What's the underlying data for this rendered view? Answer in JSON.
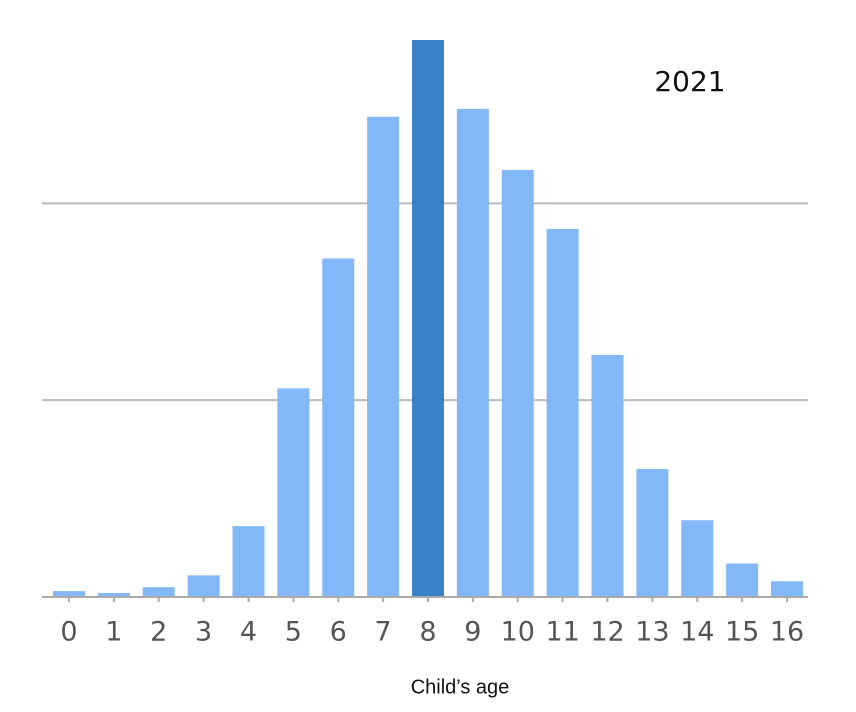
{
  "chart_data": {
    "type": "bar",
    "annotation": "2021",
    "x_label": "Child’s age",
    "categories": [
      "0",
      "1",
      "2",
      "3",
      "4",
      "5",
      "6",
      "7",
      "8",
      "9",
      "10",
      "11",
      "12",
      "13",
      "14",
      "15",
      "16"
    ],
    "values": [
      0.03,
      0.02,
      0.05,
      0.11,
      0.36,
      1.06,
      1.72,
      2.44,
      2.83,
      2.48,
      2.17,
      1.87,
      1.23,
      0.65,
      0.39,
      0.17,
      0.08
    ],
    "colors": [
      "#82b8f5",
      "#82b8f5",
      "#82b8f5",
      "#82b8f5",
      "#82b8f5",
      "#82b8f5",
      "#82b8f5",
      "#82b8f5",
      "#3a82c8",
      "#82b8f5",
      "#82b8f5",
      "#82b8f5",
      "#82b8f5",
      "#82b8f5",
      "#82b8f5",
      "#82b8f5",
      "#82b8f5"
    ],
    "ylim": [
      0,
      2.83
    ],
    "yticks": [
      1,
      2
    ],
    "grid": true
  }
}
